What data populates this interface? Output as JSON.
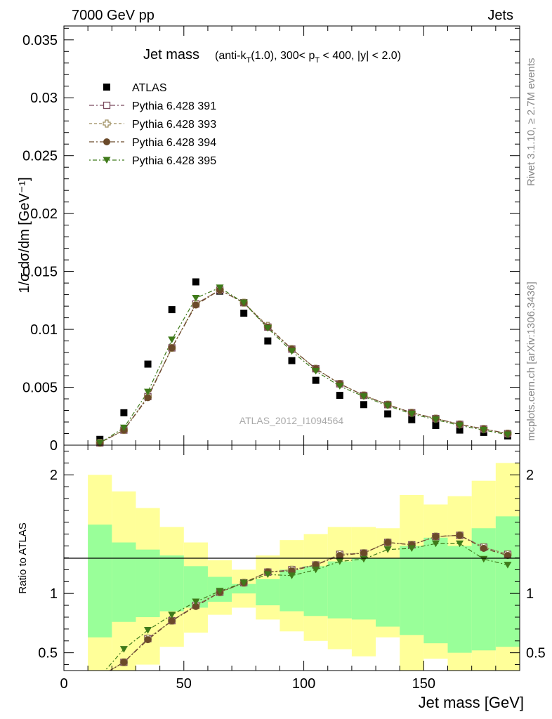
{
  "header": {
    "left": "7000 GeV pp",
    "right": "Jets"
  },
  "side_labels": {
    "rivet": "Rivet 3.1.10, ≥ 2.7M events",
    "mcplots": "mcplots.cern.ch [arXiv:1306.3436]"
  },
  "colors": {
    "atlas": "#000000",
    "p391": "#7b4a5e",
    "p393": "#9a8a5a",
    "p394": "#6b4a2a",
    "p395": "#3f7a1a",
    "band_inner": "#99ff99",
    "band_outer": "#ffff99"
  },
  "chart_data": [
    {
      "type": "scatter",
      "title": "Jet mass",
      "title_suffix": "(anti-k",
      "title_suffix_sub": "T",
      "title_suffix_rest": "(1.0), 300< p",
      "title_suffix_sub2": "T",
      "title_suffix_end": " < 400, |y| < 2.0)",
      "ylabel": "1/σ dσ/dm [GeV⁻¹]",
      "xlim": [
        0,
        190
      ],
      "ylim": [
        0,
        0.0362
      ],
      "y_ticks": [
        "0",
        "0.005",
        "0.01",
        "0.015",
        "0.02",
        "0.025",
        "0.03",
        "0.035"
      ],
      "watermark": "ATLAS_2012_I1094564",
      "legend_position": "top-left",
      "x": [
        15,
        25,
        35,
        45,
        55,
        65,
        75,
        85,
        95,
        105,
        115,
        125,
        135,
        145,
        155,
        165,
        175,
        185
      ],
      "series": [
        {
          "name": "ATLAS",
          "marker": "square-filled",
          "values": [
            0.0005,
            0.0028,
            0.007,
            0.0117,
            0.0141,
            0.0133,
            0.0114,
            0.009,
            0.0073,
            0.0056,
            0.0043,
            0.0035,
            0.0027,
            0.0022,
            0.0017,
            0.0013,
            0.0011,
            0.0008
          ]
        },
        {
          "name": "Pythia 6.428 391",
          "marker": "square-open",
          "values": [
            0.0002,
            0.0013,
            0.0042,
            0.0084,
            0.0122,
            0.0134,
            0.0123,
            0.0102,
            0.0083,
            0.0066,
            0.0053,
            0.0043,
            0.0035,
            0.0028,
            0.0023,
            0.0018,
            0.0014,
            0.001
          ]
        },
        {
          "name": "Pythia 6.428 393",
          "marker": "cross-open",
          "values": [
            0.0002,
            0.0013,
            0.0042,
            0.0084,
            0.0122,
            0.0134,
            0.0123,
            0.0103,
            0.0083,
            0.0066,
            0.0053,
            0.0043,
            0.0035,
            0.0028,
            0.0023,
            0.0018,
            0.0014,
            0.001
          ]
        },
        {
          "name": "Pythia 6.428 394",
          "marker": "circle-filled",
          "values": [
            0.0002,
            0.0013,
            0.0041,
            0.0084,
            0.0121,
            0.0134,
            0.0123,
            0.0102,
            0.0083,
            0.0066,
            0.0053,
            0.0043,
            0.0035,
            0.0028,
            0.0023,
            0.0018,
            0.0014,
            0.001
          ]
        },
        {
          "name": "Pythia 6.428 395",
          "marker": "triangle-down-filled",
          "values": [
            0.0002,
            0.0015,
            0.0046,
            0.0091,
            0.0127,
            0.0136,
            0.0123,
            0.0101,
            0.0081,
            0.0064,
            0.0051,
            0.0042,
            0.0034,
            0.0027,
            0.0022,
            0.0017,
            0.0013,
            0.0009
          ]
        }
      ]
    },
    {
      "type": "scatter",
      "xlabel": "Jet mass [GeV]",
      "ylabel": "Ratio to ATLAS",
      "xlim": [
        0,
        190
      ],
      "ylim": [
        0.35,
        2.25
      ],
      "x_ticks": [
        "0",
        "50",
        "100",
        "150"
      ],
      "y_ticks": [
        "0.5",
        "1",
        "2"
      ],
      "bin_edges": [
        10,
        20,
        30,
        40,
        50,
        60,
        70,
        80,
        90,
        100,
        110,
        120,
        130,
        140,
        150,
        160,
        170,
        180,
        190
      ],
      "band_inner": [
        [
          0.63,
          1.58
        ],
        [
          0.76,
          1.43
        ],
        [
          0.8,
          1.37
        ],
        [
          0.85,
          1.32
        ],
        [
          0.88,
          1.23
        ],
        [
          0.93,
          1.14
        ],
        [
          1.0,
          1.08
        ],
        [
          0.9,
          1.12
        ],
        [
          0.85,
          1.2
        ],
        [
          0.81,
          1.23
        ],
        [
          0.79,
          1.27
        ],
        [
          0.78,
          1.3
        ],
        [
          0.72,
          1.3
        ],
        [
          0.65,
          1.4
        ],
        [
          0.58,
          1.47
        ],
        [
          0.5,
          1.4
        ],
        [
          0.52,
          1.55
        ],
        [
          0.55,
          1.65
        ]
      ],
      "band_outer": [
        [
          0.35,
          2.0
        ],
        [
          0.35,
          1.86
        ],
        [
          0.4,
          1.72
        ],
        [
          0.55,
          1.56
        ],
        [
          0.67,
          1.43
        ],
        [
          0.82,
          1.28
        ],
        [
          0.88,
          1.2
        ],
        [
          0.78,
          1.32
        ],
        [
          0.68,
          1.45
        ],
        [
          0.6,
          1.5
        ],
        [
          0.53,
          1.56
        ],
        [
          0.47,
          1.56
        ],
        [
          0.63,
          1.55
        ],
        [
          0.35,
          1.83
        ],
        [
          0.45,
          1.75
        ],
        [
          0.35,
          1.82
        ],
        [
          0.35,
          1.95
        ],
        [
          0.35,
          2.1
        ]
      ],
      "x": [
        15,
        25,
        35,
        45,
        55,
        65,
        75,
        85,
        95,
        105,
        115,
        125,
        135,
        145,
        155,
        165,
        175,
        185
      ],
      "series": [
        {
          "name": "Pythia 6.428 391",
          "values": [
            0.3,
            0.42,
            0.62,
            0.77,
            0.9,
            1.01,
            1.09,
            1.18,
            1.2,
            1.24,
            1.33,
            1.34,
            1.43,
            1.41,
            1.48,
            1.49,
            1.39,
            1.33
          ]
        },
        {
          "name": "Pythia 6.428 393",
          "values": [
            0.3,
            0.42,
            0.62,
            0.77,
            0.9,
            1.01,
            1.09,
            1.18,
            1.2,
            1.24,
            1.33,
            1.34,
            1.43,
            1.41,
            1.48,
            1.49,
            1.39,
            1.33
          ]
        },
        {
          "name": "Pythia 6.428 394",
          "values": [
            0.3,
            0.42,
            0.61,
            0.77,
            0.89,
            1.01,
            1.09,
            1.18,
            1.19,
            1.24,
            1.32,
            1.34,
            1.43,
            1.41,
            1.48,
            1.49,
            1.38,
            1.32
          ]
        },
        {
          "name": "Pythia 6.428 395",
          "values": [
            0.3,
            0.53,
            0.69,
            0.82,
            0.93,
            1.02,
            1.09,
            1.16,
            1.15,
            1.2,
            1.27,
            1.29,
            1.37,
            1.38,
            1.42,
            1.42,
            1.29,
            1.24
          ]
        }
      ]
    }
  ]
}
